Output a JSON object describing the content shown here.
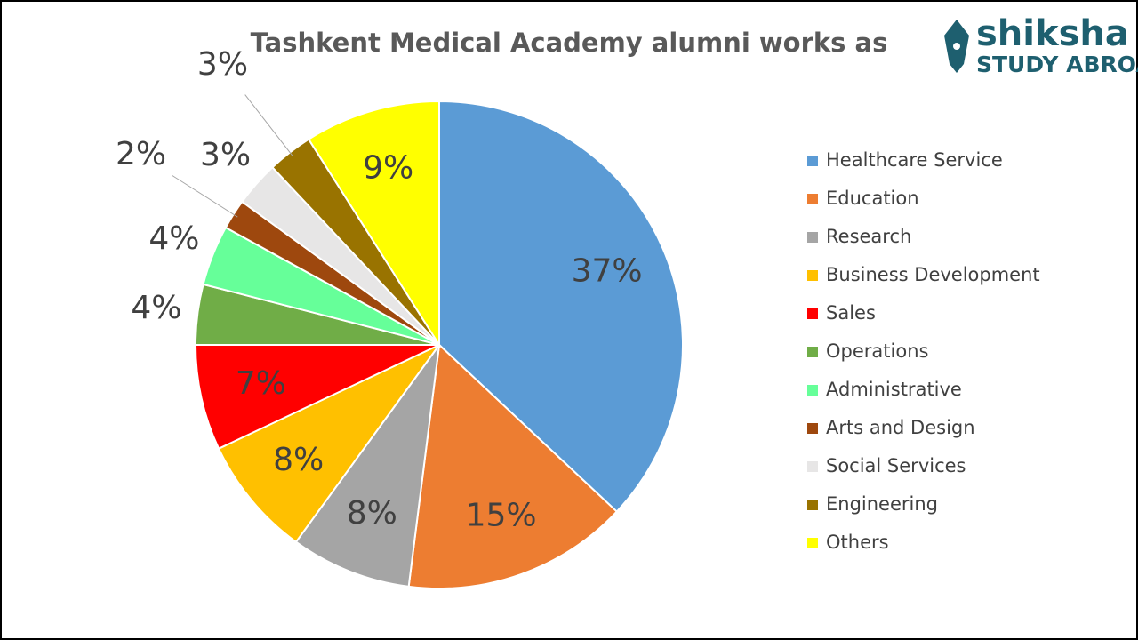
{
  "chart_data": {
    "type": "pie",
    "title": "Tashkent Medical Academy alumni works as",
    "categories": [
      "Healthcare Service",
      "Education",
      "Research",
      "Business Development",
      "Sales",
      "Operations",
      "Administrative",
      "Arts and Design",
      "Social Services",
      "Engineering",
      "Others"
    ],
    "values": [
      37,
      15,
      8,
      8,
      7,
      4,
      4,
      2,
      3,
      3,
      9
    ],
    "value_labels": [
      "37%",
      "15%",
      "8%",
      "8%",
      "7%",
      "4%",
      "4%",
      "2%",
      "3%",
      "3%",
      "9%"
    ],
    "colors": [
      "#5b9bd5",
      "#ed7d31",
      "#a5a5a5",
      "#ffc000",
      "#ff0000",
      "#70ad47",
      "#66ff99",
      "#9e480e",
      "#e7e6e6",
      "#997300",
      "#ffff00"
    ],
    "legend": "right"
  },
  "logo": {
    "name": "shiksha",
    "tagline": "STUDY ABROAD"
  }
}
